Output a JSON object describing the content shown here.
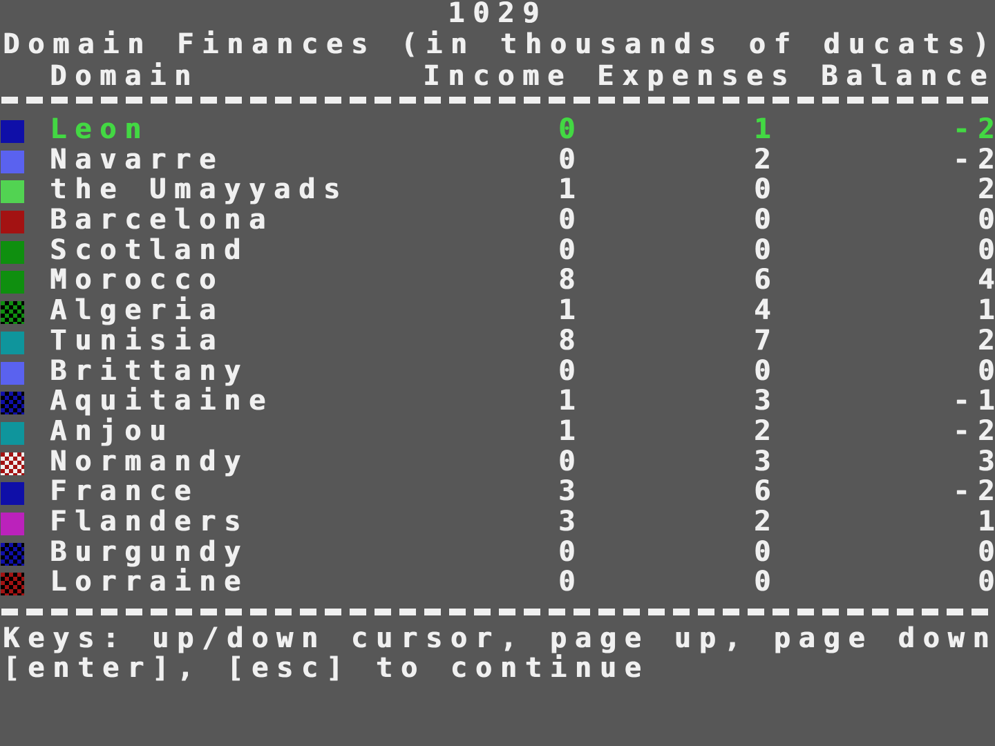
{
  "screen": {
    "year": "1029",
    "title": "Domain Finances (in thousands of ducats)",
    "columns": {
      "domain": "Domain",
      "income": "Income",
      "expenses": "Expenses",
      "balance": "Balance"
    },
    "help_line1": "Keys: up/down cursor, page up, page down",
    "help_line2": "[enter], [esc] to continue",
    "colors": {
      "background": "#575757",
      "text": "#f0f0f0",
      "highlight_green": "#43d843",
      "swatch_dark_blue": "#0f0fa8",
      "swatch_periwinkle": "#5a62ef",
      "swatch_light_green": "#52d352",
      "swatch_dark_red": "#a31212",
      "swatch_green": "#0f8f0f",
      "swatch_teal": "#0f959c",
      "swatch_magenta": "#bb22bb",
      "swatch_black": "#000000",
      "swatch_white": "#efefef"
    },
    "rows": [
      {
        "name": "Leon",
        "income": "0",
        "expenses": "1",
        "balance": "-2",
        "selected": true,
        "swatch": {
          "type": "solid",
          "c1": "#0f0fa8"
        }
      },
      {
        "name": "Navarre",
        "income": "0",
        "expenses": "2",
        "balance": "-2",
        "selected": false,
        "swatch": {
          "type": "solid",
          "c1": "#5a62ef"
        }
      },
      {
        "name": "the Umayyads",
        "income": "1",
        "expenses": "0",
        "balance": "2",
        "selected": false,
        "swatch": {
          "type": "solid",
          "c1": "#52d352"
        }
      },
      {
        "name": "Barcelona",
        "income": "0",
        "expenses": "0",
        "balance": "0",
        "selected": false,
        "swatch": {
          "type": "solid",
          "c1": "#a31212"
        }
      },
      {
        "name": "Scotland",
        "income": "0",
        "expenses": "0",
        "balance": "0",
        "selected": false,
        "swatch": {
          "type": "solid",
          "c1": "#0f8f0f"
        }
      },
      {
        "name": "Morocco",
        "income": "8",
        "expenses": "6",
        "balance": "4",
        "selected": false,
        "swatch": {
          "type": "solid",
          "c1": "#0f8f0f"
        }
      },
      {
        "name": "Algeria",
        "income": "1",
        "expenses": "4",
        "balance": "1",
        "selected": false,
        "swatch": {
          "type": "check",
          "c1": "#0f8f0f",
          "c2": "#000000"
        }
      },
      {
        "name": "Tunisia",
        "income": "8",
        "expenses": "7",
        "balance": "2",
        "selected": false,
        "swatch": {
          "type": "solid",
          "c1": "#0f959c"
        }
      },
      {
        "name": "Brittany",
        "income": "0",
        "expenses": "0",
        "balance": "0",
        "selected": false,
        "swatch": {
          "type": "solid",
          "c1": "#5a62ef"
        }
      },
      {
        "name": "Aquitaine",
        "income": "1",
        "expenses": "3",
        "balance": "-1",
        "selected": false,
        "swatch": {
          "type": "check",
          "c1": "#0f0fa8",
          "c2": "#000000"
        }
      },
      {
        "name": "Anjou",
        "income": "1",
        "expenses": "2",
        "balance": "-2",
        "selected": false,
        "swatch": {
          "type": "solid",
          "c1": "#0f959c"
        }
      },
      {
        "name": "Normandy",
        "income": "0",
        "expenses": "3",
        "balance": "3",
        "selected": false,
        "swatch": {
          "type": "check",
          "c1": "#a31212",
          "c2": "#efefef"
        }
      },
      {
        "name": "France",
        "income": "3",
        "expenses": "6",
        "balance": "-2",
        "selected": false,
        "swatch": {
          "type": "solid",
          "c1": "#0f0fa8"
        }
      },
      {
        "name": "Flanders",
        "income": "3",
        "expenses": "2",
        "balance": "1",
        "selected": false,
        "swatch": {
          "type": "solid",
          "c1": "#bb22bb"
        }
      },
      {
        "name": "Burgundy",
        "income": "0",
        "expenses": "0",
        "balance": "0",
        "selected": false,
        "swatch": {
          "type": "check",
          "c1": "#0f0fa8",
          "c2": "#000000"
        }
      },
      {
        "name": "Lorraine",
        "income": "0",
        "expenses": "0",
        "balance": "0",
        "selected": false,
        "swatch": {
          "type": "check",
          "c1": "#a31212",
          "c2": "#000000"
        }
      }
    ]
  }
}
